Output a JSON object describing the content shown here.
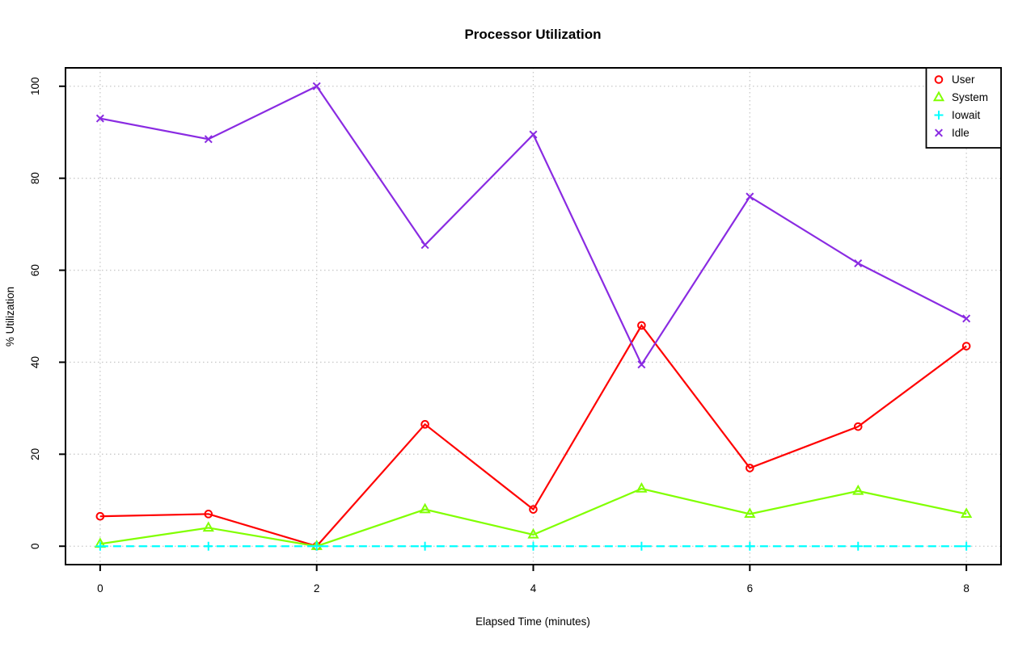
{
  "window": {
    "background": "#FFFFFF"
  },
  "chart_data": {
    "type": "line",
    "title": "Processor Utilization",
    "xlabel": "Elapsed Time (minutes)",
    "ylabel": "% Utilization",
    "x": [
      0,
      1,
      2,
      3,
      4,
      5,
      6,
      7,
      8
    ],
    "series": [
      {
        "name": "User",
        "color": "#FF0000",
        "marker": "circle",
        "linestyle": "solid",
        "values": [
          6.5,
          7,
          0,
          26.5,
          8,
          48,
          17,
          26,
          43.5
        ]
      },
      {
        "name": "System",
        "color": "#80FF00",
        "marker": "triangle",
        "linestyle": "solid",
        "values": [
          0.5,
          4,
          0,
          8,
          2.5,
          12.5,
          7,
          12,
          7
        ]
      },
      {
        "name": "Iowait",
        "color": "#00FFFF",
        "marker": "plus",
        "linestyle": "dashed",
        "values": [
          0,
          0,
          0,
          0,
          0,
          0,
          0,
          0,
          0
        ]
      },
      {
        "name": "Idle",
        "color": "#8A2BE2",
        "marker": "x",
        "linestyle": "solid",
        "values": [
          93,
          88.5,
          100,
          65.5,
          89.5,
          39.5,
          76,
          61.5,
          49.5
        ]
      }
    ],
    "xlim": [
      0,
      8
    ],
    "ylim": [
      0,
      100
    ],
    "xticks": [
      0,
      2,
      4,
      6,
      8
    ],
    "yticks": [
      0,
      20,
      40,
      60,
      80,
      100
    ],
    "grid": true,
    "grid_color": "#C9C9C9",
    "axis_color": "#000000",
    "legend_position": "top-right",
    "legend": [
      "User",
      "System",
      "Iowait",
      "Idle"
    ]
  }
}
